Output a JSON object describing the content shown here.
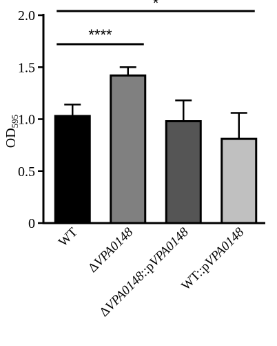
{
  "chart_data": {
    "type": "bar",
    "ylabel_main": "OD",
    "ylabel_sub": "595",
    "ylim": [
      0,
      2.0
    ],
    "yticks": [
      0,
      0.5,
      1.0,
      1.5,
      2.0
    ],
    "ytick_labels": [
      "0",
      "0.5",
      "1.0",
      "1.5",
      "2.0"
    ],
    "categories": [
      {
        "prefix": "",
        "italic": "",
        "suffix": "WT"
      },
      {
        "prefix": "Δ",
        "italic": "VPA0148",
        "suffix": ""
      },
      {
        "prefix": "Δ",
        "italic": "VPA0148",
        "suffix": "::p",
        "italic2": "VPA0148"
      },
      {
        "prefix": "WT::p",
        "italic": "VPA0148",
        "suffix": ""
      }
    ],
    "values": [
      1.03,
      1.42,
      0.98,
      0.81
    ],
    "errors": [
      0.11,
      0.08,
      0.2,
      0.25
    ],
    "colors": [
      "#000000",
      "#808080",
      "#555555",
      "#c0c0c0"
    ],
    "significance": [
      {
        "label": "****",
        "from": 0,
        "to": 1
      },
      {
        "label": "*",
        "from": 0,
        "to": 3
      }
    ],
    "grid": false
  }
}
